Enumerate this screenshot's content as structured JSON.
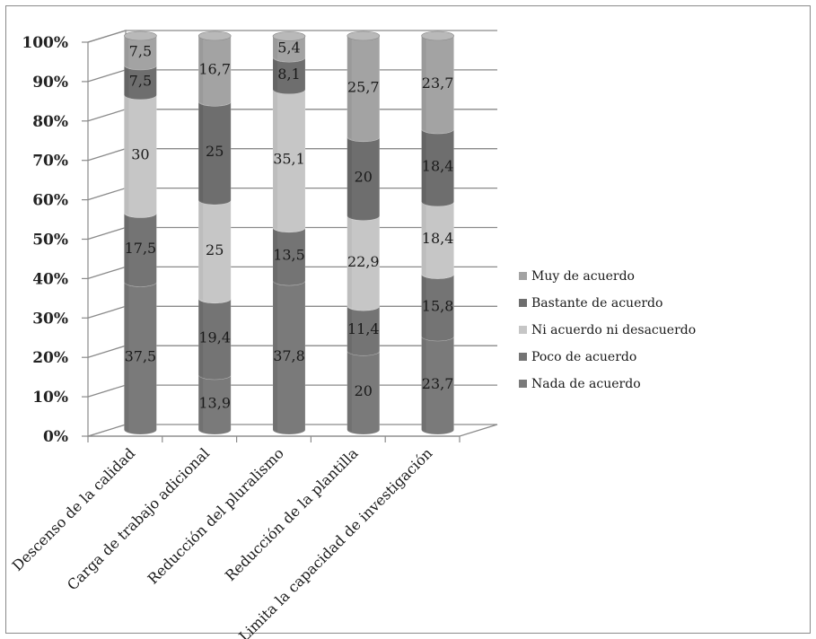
{
  "chart_data": {
    "type": "bar",
    "stacked": true,
    "bar_shape": "3d-cylinder",
    "categories": [
      "Descenso de la calidad",
      "Carga de trabajo adicional",
      "Reducción del pluralismo",
      "Reducción de la plantilla",
      "Limita la capacidad de investigación"
    ],
    "series": [
      {
        "name": "Nada de acuerdo",
        "values": [
          37.5,
          13.9,
          37.8,
          20,
          23.7
        ],
        "labels": [
          "37,5",
          "13,9",
          "37,8",
          "20",
          "23,7"
        ],
        "color": "#7a7a7a"
      },
      {
        "name": "Poco de acuerdo",
        "values": [
          17.5,
          19.4,
          13.5,
          11.4,
          15.8
        ],
        "labels": [
          "17,5",
          "19,4",
          "13,5",
          "11,4",
          "15,8"
        ],
        "color": "#747474"
      },
      {
        "name": "Ni acuerdo ni desacuerdo",
        "values": [
          30,
          25,
          35.1,
          22.9,
          18.4
        ],
        "labels": [
          "30",
          "25",
          "35,1",
          "22,9",
          "18,4"
        ],
        "color": "#c6c6c6"
      },
      {
        "name": "Bastante de acuerdo",
        "values": [
          7.5,
          25,
          8.1,
          20,
          18.4
        ],
        "labels": [
          "7,5",
          "25",
          "8,1",
          "20",
          "18,4"
        ],
        "color": "#6e6e6e"
      },
      {
        "name": "Muy de acuerdo",
        "values": [
          7.5,
          16.7,
          5.4,
          25.7,
          23.7
        ],
        "labels": [
          "7,5",
          "16,7",
          "5,4",
          "25,7",
          "23,7"
        ],
        "color": "#a3a3a3"
      }
    ],
    "ylim": [
      0,
      100
    ],
    "ytick_labels": [
      "0%",
      "10%",
      "20%",
      "30%",
      "40%",
      "50%",
      "60%",
      "70%",
      "80%",
      "90%",
      "100%"
    ],
    "legend_order": [
      "Muy de acuerdo",
      "Bastante de acuerdo",
      "Ni acuerdo ni desacuerdo",
      "Poco de acuerdo",
      "Nada de acuerdo"
    ],
    "legend_position": "right",
    "grid": true,
    "title": "",
    "xlabel": "",
    "ylabel": ""
  }
}
